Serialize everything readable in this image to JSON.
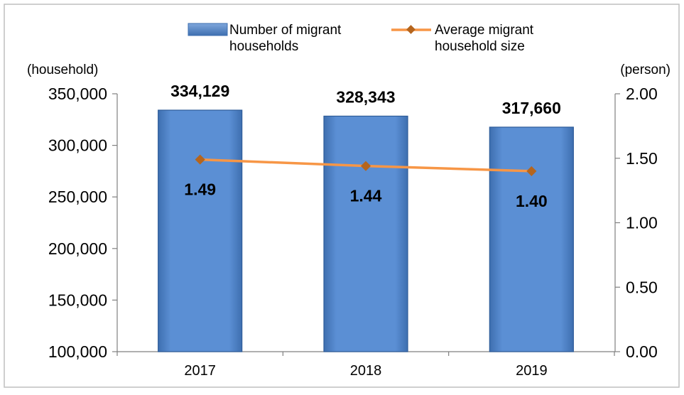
{
  "chart_data": {
    "type": "bar+line",
    "legend_position": "top",
    "categories": [
      "2017",
      "2018",
      "2019"
    ],
    "y_left": {
      "unit_label": "(household)",
      "range": [
        100000,
        350000
      ],
      "ticks": [
        100000,
        150000,
        200000,
        250000,
        300000,
        350000
      ],
      "tick_labels": [
        "100,000",
        "150,000",
        "200,000",
        "250,000",
        "300,000",
        "350,000"
      ]
    },
    "y_right": {
      "unit_label": "(person)",
      "range": [
        0,
        2
      ],
      "ticks": [
        0,
        0.5,
        1.0,
        1.5,
        2.0
      ],
      "tick_labels": [
        "0.00",
        "0.50",
        "1.00",
        "1.50",
        "2.00"
      ]
    },
    "series": [
      {
        "name": "Number of migrant households",
        "name_lines": [
          "Number of migrant",
          "households"
        ],
        "type": "bar",
        "axis": "left",
        "color": "#4F81BD",
        "values": [
          334129,
          328343,
          317660
        ],
        "labels": [
          "334,129",
          "328,343",
          "317,660"
        ]
      },
      {
        "name": "Average migrant household size",
        "name_lines": [
          "Average migrant",
          "household size"
        ],
        "type": "line",
        "axis": "right",
        "color": "#F79646",
        "marker_color": "#B5651D",
        "values": [
          1.49,
          1.44,
          1.4
        ],
        "labels": [
          "1.49",
          "1.44",
          "1.40"
        ]
      }
    ]
  }
}
